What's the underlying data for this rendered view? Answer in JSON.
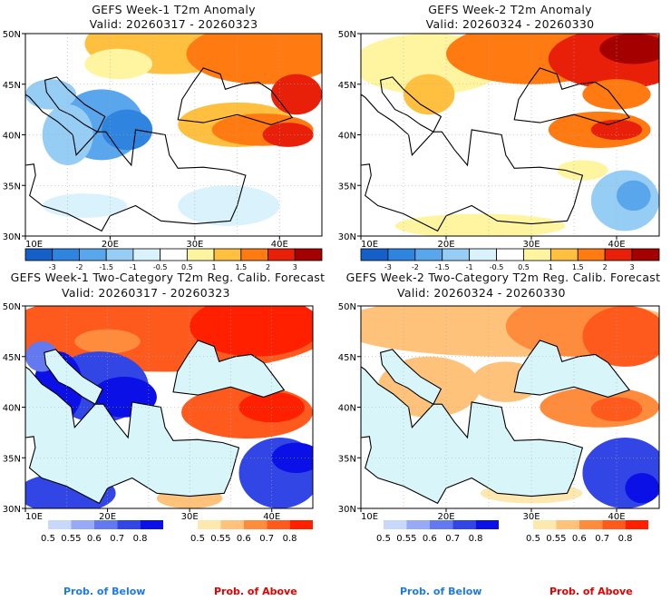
{
  "panels": [
    {
      "title": "GEFS Week-1 T2m Anomaly",
      "valid": "Valid: 20260317 - 20260323"
    },
    {
      "title": "GEFS Week-2 T2m Anomaly",
      "valid": "Valid: 20260324 - 20260330"
    },
    {
      "title": "GEFS Week-1 Two-Category T2m Reg. Calib. Forecast",
      "valid": "Valid: 20260317 - 20260323"
    },
    {
      "title": "GEFS Week-2 Two-Category T2m Reg. Calib. Forecast",
      "valid": "Valid: 20260324 - 20260330"
    }
  ],
  "axes": {
    "lon_ticks": [
      "10E",
      "20E",
      "30E",
      "40E"
    ],
    "lat_ticks": [
      "50N",
      "45N",
      "40N",
      "35N",
      "30N"
    ]
  },
  "anomaly_colorbar": {
    "labels": [
      "-3",
      "-2",
      "-1.5",
      "-1",
      "-0.5",
      "0.5",
      "1",
      "1.5",
      "2",
      "3"
    ],
    "colors": [
      "#1560c8",
      "#2f84e0",
      "#5aa6ec",
      "#96cdf5",
      "#d9f2fb",
      "#ffffff",
      "#fff5a0",
      "#ffc040",
      "#ff7a10",
      "#e8200a",
      "#a50000"
    ]
  },
  "prob_below_colorbar": {
    "labels": [
      "0.5",
      "0.55",
      "0.6",
      "0.7",
      "0.8"
    ],
    "colors": [
      "#c8d8fa",
      "#96aaf5",
      "#6478f0",
      "#3246e6",
      "#0a10e6"
    ]
  },
  "prob_above_colorbar": {
    "labels": [
      "0.5",
      "0.55",
      "0.6",
      "0.7",
      "0.8"
    ],
    "colors": [
      "#ffe8b0",
      "#ffc27a",
      "#ff8c3c",
      "#ff5a1e",
      "#ff2000"
    ]
  },
  "legend": {
    "below": "Prob. of Below",
    "above": "Prob. of Above",
    "below_color": "#1e78f0",
    "above_color": "#e60000"
  }
}
